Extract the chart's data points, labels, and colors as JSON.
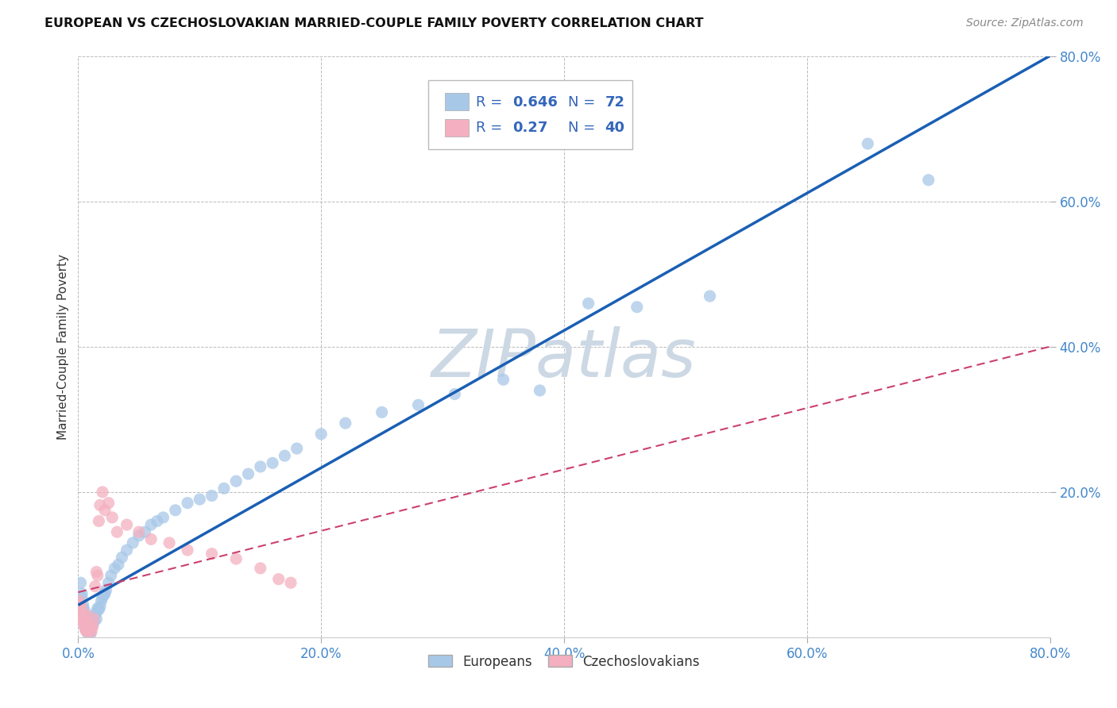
{
  "title": "EUROPEAN VS CZECHOSLOVAKIAN MARRIED-COUPLE FAMILY POVERTY CORRELATION CHART",
  "source": "Source: ZipAtlas.com",
  "ylabel": "Married-Couple Family Poverty",
  "xlim": [
    0.0,
    0.8
  ],
  "ylim": [
    0.0,
    0.8
  ],
  "xticks": [
    0.0,
    0.2,
    0.4,
    0.6,
    0.8
  ],
  "yticks": [
    0.2,
    0.4,
    0.6,
    0.8
  ],
  "xticklabels": [
    "0.0%",
    "20.0%",
    "40.0%",
    "60.0%",
    "80.0%"
  ],
  "yticklabels": [
    "20.0%",
    "40.0%",
    "60.0%",
    "80.0%"
  ],
  "european_R": 0.646,
  "european_N": 72,
  "czechoslovakian_R": 0.27,
  "czechoslovakian_N": 40,
  "european_color": "#a8c8e8",
  "european_line_color": "#1a5fb4",
  "czechoslovakian_color": "#f4b0c0",
  "czechoslovakian_line_color": "#cc4070",
  "watermark_color": "#ccd8e4",
  "background_color": "#ffffff",
  "grid_color": "#bbbbbb",
  "title_color": "#111111",
  "source_color": "#888888",
  "axis_label_color": "#333333",
  "tick_color": "#4488cc",
  "legend_color": "#3366bb",
  "eu_x": [
    0.002,
    0.003,
    0.003,
    0.004,
    0.004,
    0.005,
    0.005,
    0.006,
    0.006,
    0.007,
    0.007,
    0.007,
    0.008,
    0.008,
    0.008,
    0.009,
    0.009,
    0.01,
    0.01,
    0.01,
    0.011,
    0.011,
    0.012,
    0.012,
    0.013,
    0.013,
    0.014,
    0.015,
    0.015,
    0.016,
    0.017,
    0.018,
    0.019,
    0.02,
    0.021,
    0.022,
    0.023,
    0.025,
    0.027,
    0.03,
    0.033,
    0.036,
    0.04,
    0.045,
    0.05,
    0.055,
    0.06,
    0.065,
    0.07,
    0.08,
    0.09,
    0.1,
    0.11,
    0.12,
    0.13,
    0.14,
    0.15,
    0.16,
    0.17,
    0.18,
    0.2,
    0.22,
    0.25,
    0.28,
    0.31,
    0.35,
    0.38,
    0.42,
    0.46,
    0.52,
    0.65,
    0.7
  ],
  "eu_y": [
    0.075,
    0.06,
    0.055,
    0.045,
    0.04,
    0.038,
    0.03,
    0.028,
    0.02,
    0.018,
    0.015,
    0.012,
    0.01,
    0.008,
    0.005,
    0.008,
    0.012,
    0.01,
    0.007,
    0.004,
    0.015,
    0.02,
    0.018,
    0.025,
    0.022,
    0.028,
    0.03,
    0.025,
    0.035,
    0.04,
    0.038,
    0.042,
    0.05,
    0.055,
    0.058,
    0.06,
    0.065,
    0.075,
    0.085,
    0.095,
    0.1,
    0.11,
    0.12,
    0.13,
    0.14,
    0.145,
    0.155,
    0.16,
    0.165,
    0.175,
    0.185,
    0.19,
    0.195,
    0.205,
    0.215,
    0.225,
    0.235,
    0.24,
    0.25,
    0.26,
    0.28,
    0.295,
    0.31,
    0.32,
    0.335,
    0.355,
    0.34,
    0.46,
    0.455,
    0.47,
    0.68,
    0.63
  ],
  "cz_x": [
    0.001,
    0.002,
    0.002,
    0.003,
    0.003,
    0.004,
    0.004,
    0.005,
    0.005,
    0.006,
    0.006,
    0.007,
    0.007,
    0.008,
    0.008,
    0.009,
    0.01,
    0.011,
    0.012,
    0.013,
    0.014,
    0.015,
    0.016,
    0.017,
    0.018,
    0.02,
    0.022,
    0.025,
    0.028,
    0.032,
    0.04,
    0.05,
    0.06,
    0.075,
    0.09,
    0.11,
    0.13,
    0.15,
    0.165,
    0.175
  ],
  "cz_y": [
    0.05,
    0.045,
    0.04,
    0.035,
    0.03,
    0.025,
    0.022,
    0.018,
    0.015,
    0.012,
    0.01,
    0.008,
    0.012,
    0.02,
    0.03,
    0.015,
    0.01,
    0.008,
    0.015,
    0.025,
    0.07,
    0.09,
    0.085,
    0.16,
    0.182,
    0.2,
    0.175,
    0.185,
    0.165,
    0.145,
    0.155,
    0.145,
    0.135,
    0.13,
    0.12,
    0.115,
    0.108,
    0.095,
    0.08,
    0.075
  ]
}
